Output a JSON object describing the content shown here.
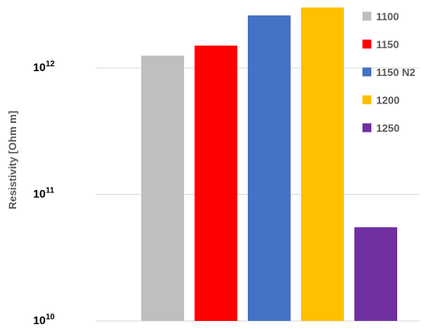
{
  "chart_data": {
    "type": "bar",
    "ylabel": "Resistivity [Ohm m]",
    "yscale": "log",
    "ylim": [
      10000000000.0,
      3000000000000.0
    ],
    "yticks": [
      {
        "value": 10000000000.0,
        "base": "10",
        "exp": "10"
      },
      {
        "value": 100000000000.0,
        "base": "10",
        "exp": "11"
      },
      {
        "value": 1000000000000.0,
        "base": "10",
        "exp": "12"
      }
    ],
    "grid": true,
    "legend_position": "right",
    "series": [
      {
        "name": "1100",
        "value": 1250000000000.0,
        "color": "#BFBFBF"
      },
      {
        "name": "1150",
        "value": 1500000000000.0,
        "color": "#FF0000"
      },
      {
        "name": "1150 N2",
        "value": 2600000000000.0,
        "color": "#4472C4"
      },
      {
        "name": "1200",
        "value": 3000000000000.0,
        "color": "#FFC000"
      },
      {
        "name": "1250",
        "value": 55000000000.0,
        "color": "#7030A0"
      }
    ]
  }
}
